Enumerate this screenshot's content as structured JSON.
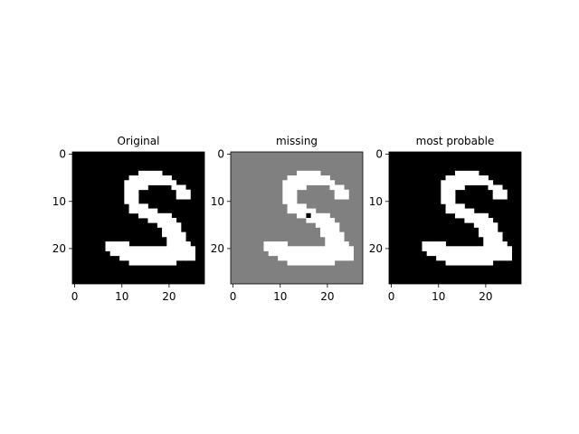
{
  "chart_data": {
    "type": "heatmap",
    "colormap": "gray",
    "image_size": [
      28,
      28
    ],
    "digit": "S",
    "panels": [
      {
        "title": "Original",
        "background": "#000000",
        "foreground": "#ffffff",
        "xticks": [
          0,
          10,
          20
        ],
        "yticks": [
          0,
          10,
          20
        ],
        "rows": [
          "............................",
          "............................",
          "............................",
          "............................",
          "..............#####.........",
          "............#########.......",
          "...........###########......",
          "...........#####.....###....",
          "...........###........###...",
          "...........###........###...",
          "...........###..............",
          "............####............",
          "............######..........",
          "..............#######.......",
          "................######......",
          "..................#####.....",
          "...................####.....",
          "...................#####....",
          "....................####....",
          ".......#####........#####...",
          ".......###################..",
          "........##################..",
          "..........################..",
          "............##########......",
          "............................",
          "............................",
          "............................",
          "............................"
        ]
      },
      {
        "title": "missing",
        "background": "#808080",
        "foreground": "#ffffff",
        "missing_color": "#000000",
        "xticks": [
          0,
          10,
          20
        ],
        "yticks": [
          0,
          10,
          20
        ],
        "rows": [
          "............................",
          "............................",
          "............................",
          "............................",
          "..............#####.........",
          "............#########.......",
          "...........###########......",
          "...........#####.....###....",
          "...........###........###...",
          "...........###........###...",
          "...........###..............",
          "............####............",
          "............######..........",
          "..............##x####.......",
          "................######......",
          "..................#####.....",
          "...................####.....",
          "...................#####....",
          "....................####....",
          ".......#####........#####...",
          ".......###################..",
          "........##################..",
          "..........################..",
          "............##########......",
          "............................",
          "............................",
          "............................",
          "............................"
        ]
      },
      {
        "title": "most probable",
        "background": "#000000",
        "foreground": "#ffffff",
        "xticks": [
          0,
          10,
          20
        ],
        "yticks": [
          0,
          10,
          20
        ],
        "rows": [
          "............................",
          "............................",
          "............................",
          "............................",
          "..............#####.........",
          "............#########.......",
          "...........###########......",
          "...........#####.....###....",
          "...........###........###...",
          "...........###........###...",
          "...........###..............",
          "............####............",
          "............######..........",
          "..............#######.......",
          "................######......",
          "..................#####.....",
          "...................####.....",
          "...................#####....",
          "....................####....",
          ".......#####........#####...",
          ".......###################..",
          "........##################..",
          "..........################..",
          "............##########......",
          "............................",
          "............................",
          "............................",
          "............................"
        ]
      }
    ]
  }
}
